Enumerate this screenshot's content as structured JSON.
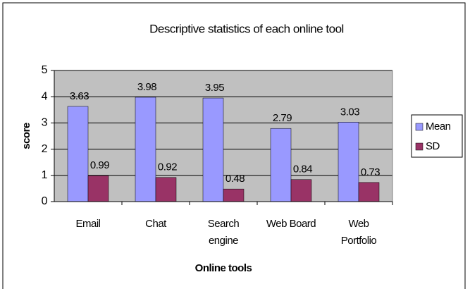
{
  "chart_data": {
    "type": "bar",
    "title": "Descriptive statistics of each online tool",
    "x_label": "Online tools",
    "y_label": "score",
    "categories": [
      "Email",
      "Chat",
      "Search\nengine",
      "Web Board",
      "Web\nPortfolio"
    ],
    "series": [
      {
        "name": "Mean",
        "color": "#9999ff",
        "values": [
          3.63,
          3.98,
          3.95,
          2.79,
          3.03
        ]
      },
      {
        "name": "SD",
        "color": "#993366",
        "values": [
          0.99,
          0.92,
          0.48,
          0.84,
          0.73
        ]
      }
    ],
    "ylim": [
      0,
      5
    ],
    "yticks": [
      0,
      1,
      2,
      3,
      4,
      5
    ],
    "grid": true,
    "legend": "right"
  }
}
